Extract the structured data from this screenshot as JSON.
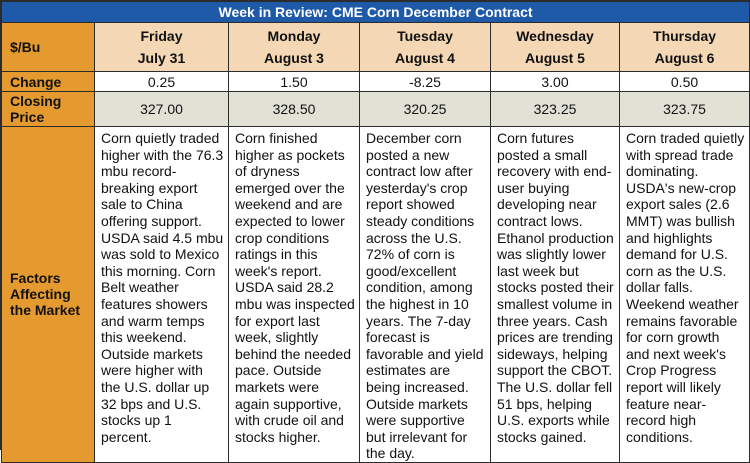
{
  "title": "Week in Review: CME Corn December Contract",
  "row_labels": {
    "unit": "$/Bu",
    "change": "Change",
    "closing": "Closing Price",
    "factors": "Factors Affecting the Market"
  },
  "days": [
    {
      "day": "Friday",
      "date": "July 31",
      "change": "0.25",
      "closing": "327.00",
      "factors": "Corn quietly traded higher with the 76.3 mbu record-breaking export sale to China offering support. USDA said 4.5 mbu was sold to Mexico this morning. Corn Belt weather features showers and warm temps this weekend. Outside markets were higher with the U.S. dollar up 32 bps and U.S. stocks up 1 percent."
    },
    {
      "day": "Monday",
      "date": "August 3",
      "change": "1.50",
      "closing": "328.50",
      "factors": "Corn finished higher as pockets of dryness emerged over the weekend and are expected to lower crop conditions ratings in this week's report. USDA said 28.2 mbu was inspected for export last week, slightly behind the needed pace. Outside markets were again supportive, with crude oil and stocks higher."
    },
    {
      "day": "Tuesday",
      "date": "August 4",
      "change": "-8.25",
      "closing": "320.25",
      "factors": "December corn posted a new contract low after yesterday's crop report showed steady conditions across the U.S. 72% of corn is good/excellent condition, among the highest in 10 years. The 7-day forecast is favorable and yield estimates are being increased. Outside markets were supportive but irrelevant for the day."
    },
    {
      "day": "Wednesday",
      "date": "August 5",
      "change": "3.00",
      "closing": "323.25",
      "factors": "Corn futures posted a small recovery with end-user buying developing near contract lows. Ethanol production was slightly lower last week but stocks posted their smallest volume in three years. Cash prices are trending sideways, helping support the CBOT. The U.S. dollar fell 51 bps, helping U.S. exports while stocks gained."
    },
    {
      "day": "Thursday",
      "date": "August 6",
      "change": "0.50",
      "closing": "323.75",
      "factors": "Corn traded quietly with spread trade dominating. USDA's new-crop export sales (2.6 MMT) was bullish and highlights demand for U.S. corn as the U.S. dollar falls. Weekend weather remains favorable for corn growth and next week's Crop Progress report will likely feature near-record high conditions."
    }
  ]
}
